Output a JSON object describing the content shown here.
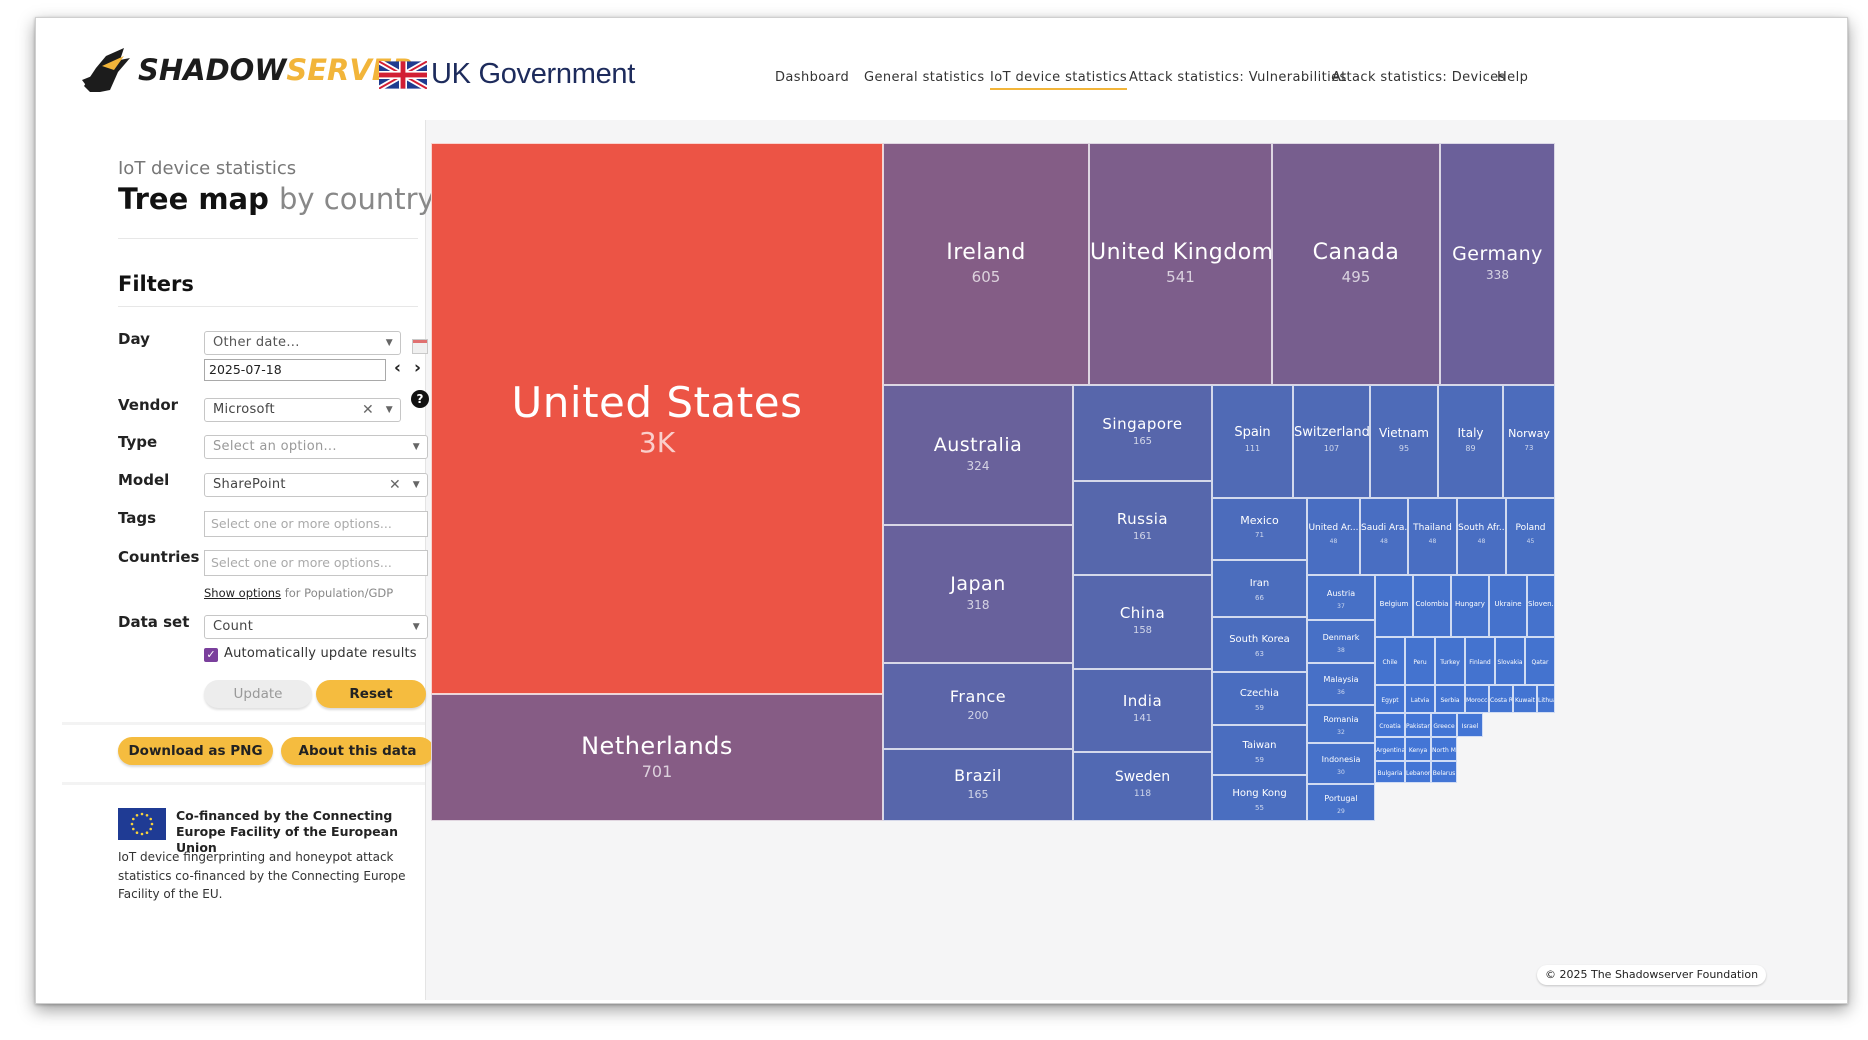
{
  "header": {
    "logo": {
      "part1": "SHADOW",
      "part2": "SERVER"
    },
    "partner": "UK Government",
    "nav": [
      {
        "label": "Dashboard",
        "active": false
      },
      {
        "label": "General statistics",
        "active": false
      },
      {
        "label": "IoT device statistics",
        "active": true
      },
      {
        "label": "Attack statistics: Vulnerabilities",
        "active": false
      },
      {
        "label": "Attack statistics: Devices",
        "active": false
      },
      {
        "label": "Help",
        "active": false
      }
    ]
  },
  "sidebar": {
    "breadcrumb": "IoT device statistics",
    "title": {
      "main": "Tree map",
      "sub": "by country"
    },
    "filters_heading": "Filters",
    "day": {
      "label": "Day",
      "selected": "Other date...",
      "date": "2025-07-18"
    },
    "vendor": {
      "label": "Vendor",
      "selected": "Microsoft",
      "help": "?"
    },
    "type": {
      "label": "Type",
      "placeholder": "Select an option..."
    },
    "model": {
      "label": "Model",
      "selected": "SharePoint"
    },
    "tags": {
      "label": "Tags",
      "placeholder": "Select one or more options..."
    },
    "countries": {
      "label": "Countries",
      "placeholder": "Select one or more options..."
    },
    "show_options": {
      "link": "Show options",
      "suffix": "for Population/GDP"
    },
    "dataset": {
      "label": "Data set",
      "selected": "Count"
    },
    "auto_update": {
      "label": "Automatically update results",
      "checked": true
    },
    "update_label": "Update",
    "reset_label": "Reset",
    "download_label": "Download as PNG",
    "about_label": "About this data",
    "eu": {
      "title": "Co-financed by the Connecting Europe Facility of the European Union",
      "body": "IoT device fingerprinting and honeypot attack statistics co-financed by the Connecting Europe Facility of the EU."
    }
  },
  "chart_data": {
    "type": "treemap",
    "colors": {
      "max": "#ec5445",
      "high": "#865c85",
      "mid": "#6e5f97",
      "low": "#5468b3",
      "min": "#4774da"
    },
    "items": [
      {
        "name": "United States",
        "value": "3K",
        "color": "#ec5445"
      },
      {
        "name": "Netherlands",
        "value": "701",
        "color": "#865c85"
      },
      {
        "name": "Ireland",
        "value": "605",
        "color": "#845d86"
      },
      {
        "name": "United Kingdom",
        "value": "541",
        "color": "#7d5e8b"
      },
      {
        "name": "Canada",
        "value": "495",
        "color": "#775e8e"
      },
      {
        "name": "Germany",
        "value": "338",
        "color": "#6b609a"
      },
      {
        "name": "Australia",
        "value": "324",
        "color": "#69619b"
      },
      {
        "name": "Japan",
        "value": "318",
        "color": "#68619c"
      },
      {
        "name": "France",
        "value": "200",
        "color": "#5c65a8"
      },
      {
        "name": "Brazil",
        "value": "165",
        "color": "#5766ab"
      },
      {
        "name": "Singapore",
        "value": "165",
        "color": "#5766ab"
      },
      {
        "name": "Russia",
        "value": "161",
        "color": "#5667ac"
      },
      {
        "name": "China",
        "value": "158",
        "color": "#5667ad"
      },
      {
        "name": "India",
        "value": "141",
        "color": "#5468b0"
      },
      {
        "name": "Sweden",
        "value": "118",
        "color": "#5169b3"
      },
      {
        "name": "Spain",
        "value": "111",
        "color": "#506ab5"
      },
      {
        "name": "Switzerland",
        "value": "107",
        "color": "#4f6ab6"
      },
      {
        "name": "Vietnam",
        "value": "95",
        "color": "#4e6bb8"
      },
      {
        "name": "Italy",
        "value": "89",
        "color": "#4d6bb9"
      },
      {
        "name": "Norway",
        "value": "73",
        "color": "#4c6cbc"
      },
      {
        "name": "Mexico",
        "value": "71",
        "color": "#4c6cbc"
      },
      {
        "name": "Iran",
        "value": "66",
        "color": "#4b6dbd"
      },
      {
        "name": "South Korea",
        "value": "63",
        "color": "#4b6dbe"
      },
      {
        "name": "Czechia",
        "value": "59",
        "color": "#4a6dbf"
      },
      {
        "name": "Taiwan",
        "value": "59",
        "color": "#4a6dbf"
      },
      {
        "name": "Hong Kong",
        "value": "55",
        "color": "#4a6ec0"
      },
      {
        "name": "United Ar...",
        "value": "48",
        "color": "#496ec2"
      },
      {
        "name": "Saudi Ara...",
        "value": "48",
        "color": "#496ec2"
      },
      {
        "name": "Thailand",
        "value": "48",
        "color": "#496ec2"
      },
      {
        "name": "South Afr...",
        "value": "48",
        "color": "#496ec2"
      },
      {
        "name": "Poland",
        "value": "45",
        "color": "#486fc3"
      },
      {
        "name": "Austria",
        "value": "37",
        "color": "#4770c6"
      },
      {
        "name": "Denmark",
        "value": "38",
        "color": "#4770c6"
      },
      {
        "name": "Malaysia",
        "value": "36",
        "color": "#4770c7"
      },
      {
        "name": "Romania",
        "value": "32",
        "color": "#4671c8"
      },
      {
        "name": "Indonesia",
        "value": "30",
        "color": "#4671c9"
      },
      {
        "name": "Portugal",
        "value": "29",
        "color": "#4671c9"
      },
      {
        "name": "Belgium",
        "value": "",
        "color": "#4572cc"
      },
      {
        "name": "Colombia",
        "value": "",
        "color": "#4572cc"
      },
      {
        "name": "Hungary",
        "value": "",
        "color": "#4572cc"
      },
      {
        "name": "Ukraine",
        "value": "",
        "color": "#4572cc"
      },
      {
        "name": "Sloven...",
        "value": "",
        "color": "#4572cc"
      },
      {
        "name": "Chile",
        "value": "",
        "color": "#4473cf"
      },
      {
        "name": "Peru",
        "value": "",
        "color": "#4473cf"
      },
      {
        "name": "Turkey",
        "value": "",
        "color": "#4473cf"
      },
      {
        "name": "Finland",
        "value": "",
        "color": "#4473cf"
      },
      {
        "name": "Slovakia",
        "value": "",
        "color": "#4473cf"
      },
      {
        "name": "Qatar",
        "value": "",
        "color": "#4473cf"
      },
      {
        "name": "Egypt",
        "value": "",
        "color": "#4374d2"
      },
      {
        "name": "Latvia",
        "value": "",
        "color": "#4374d2"
      },
      {
        "name": "Serbia",
        "value": "",
        "color": "#4374d2"
      },
      {
        "name": "Morocco",
        "value": "",
        "color": "#4374d2"
      },
      {
        "name": "Costa Ri...",
        "value": "",
        "color": "#4374d2"
      },
      {
        "name": "Kuwait",
        "value": "",
        "color": "#4374d2"
      },
      {
        "name": "Lithuan...",
        "value": "",
        "color": "#4374d2"
      },
      {
        "name": "Croatia",
        "value": "",
        "color": "#4375d5"
      },
      {
        "name": "Pakistan",
        "value": "",
        "color": "#4375d5"
      },
      {
        "name": "Greece",
        "value": "",
        "color": "#4375d5"
      },
      {
        "name": "Israel",
        "value": "",
        "color": "#4375d5"
      },
      {
        "name": "Argentina",
        "value": "",
        "color": "#4375d5"
      },
      {
        "name": "Kenya",
        "value": "",
        "color": "#4375d5"
      },
      {
        "name": "North Mac...",
        "value": "",
        "color": "#4375d5"
      },
      {
        "name": "Bulgaria",
        "value": "",
        "color": "#4375d5"
      },
      {
        "name": "Lebanon",
        "value": "",
        "color": "#4375d5"
      },
      {
        "name": "Belarus",
        "value": "",
        "color": "#4375d5"
      }
    ]
  },
  "copyright": "© 2025 The Shadowserver Foundation"
}
